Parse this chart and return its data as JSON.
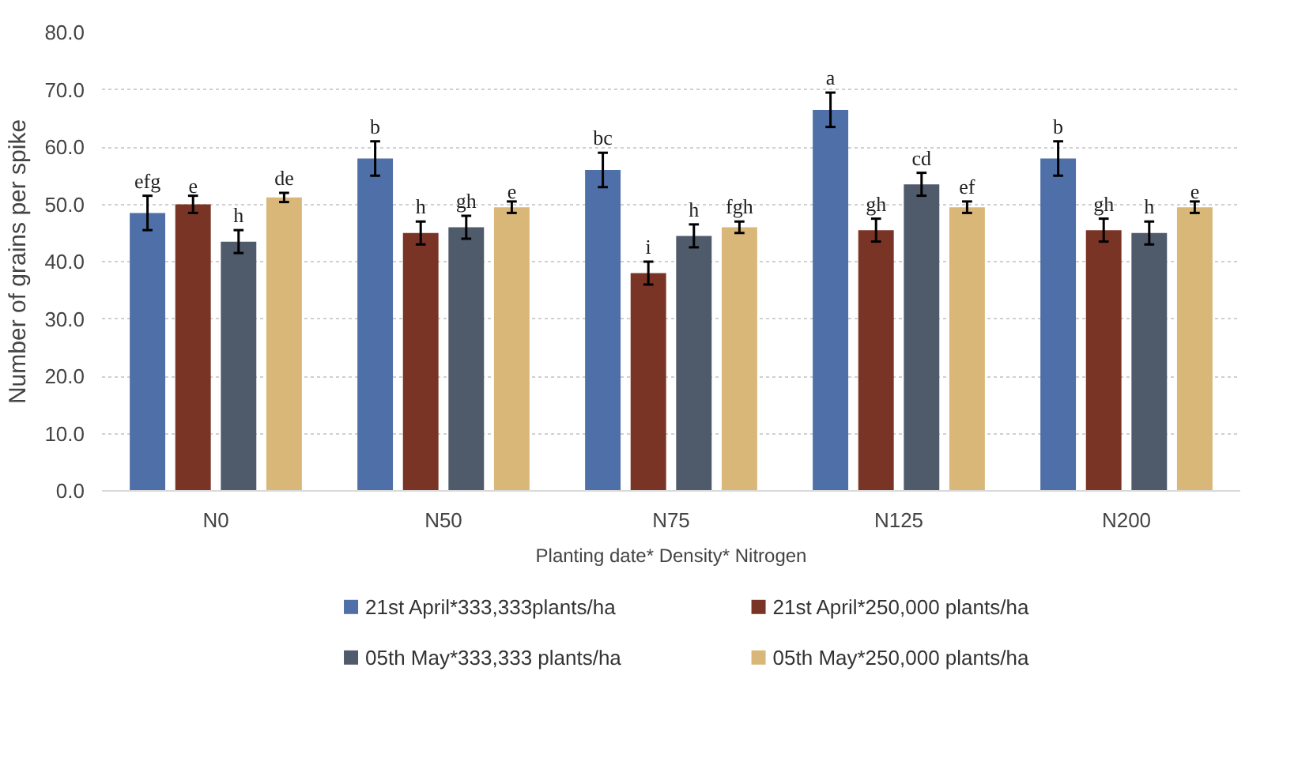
{
  "chart_data": {
    "type": "bar",
    "xlabel": "Planting date* Density* Nitrogen",
    "ylabel": "Number of grains per spike",
    "categories": [
      "N0",
      "N50",
      "N75",
      "N125",
      "N200"
    ],
    "series": [
      {
        "name": "21st April*333,333plants/ha",
        "color": "#4f6fa8",
        "values": [
          48.5,
          58,
          56,
          66.5,
          58
        ],
        "errors": [
          3,
          3,
          3,
          3,
          3
        ],
        "value_labels": [
          "efg",
          "b",
          "bc",
          "a",
          "b"
        ]
      },
      {
        "name": "21st April*250,000 plants/ha",
        "color": "#7a3425",
        "values": [
          50,
          45,
          38,
          45.5,
          45.5
        ],
        "errors": [
          1.5,
          2,
          2,
          2,
          2
        ],
        "value_labels": [
          "e",
          "h",
          "i",
          "gh",
          "gh"
        ]
      },
      {
        "name": "05th May*333,333 plants/ha",
        "color": "#4f5a6b",
        "values": [
          43.5,
          46,
          44.5,
          53.5,
          45
        ],
        "errors": [
          2,
          2,
          2,
          2,
          2
        ],
        "value_labels": [
          "h",
          "gh",
          "h",
          "cd",
          "h"
        ]
      },
      {
        "name": "05th May*250,000 plants/ha",
        "color": "#d9b778",
        "values": [
          51.2,
          49.5,
          46,
          49.5,
          49.5
        ],
        "errors": [
          0.8,
          1,
          1,
          1,
          1
        ],
        "value_labels": [
          "de",
          "e",
          "fgh",
          "ef",
          "e"
        ]
      }
    ],
    "ylim": [
      0,
      80
    ],
    "yticks": [
      {
        "value": 0,
        "label": "0.0"
      },
      {
        "value": 10,
        "label": "10.0"
      },
      {
        "value": 20,
        "label": "20.0"
      },
      {
        "value": 30,
        "label": "30.0"
      },
      {
        "value": 40,
        "label": "40.0"
      },
      {
        "value": 50,
        "label": "50.0"
      },
      {
        "value": 60,
        "label": "60.0"
      },
      {
        "value": 70,
        "label": "70.0"
      },
      {
        "value": 80,
        "label": "80.0"
      }
    ],
    "grid": "y",
    "legend": "bottom"
  }
}
